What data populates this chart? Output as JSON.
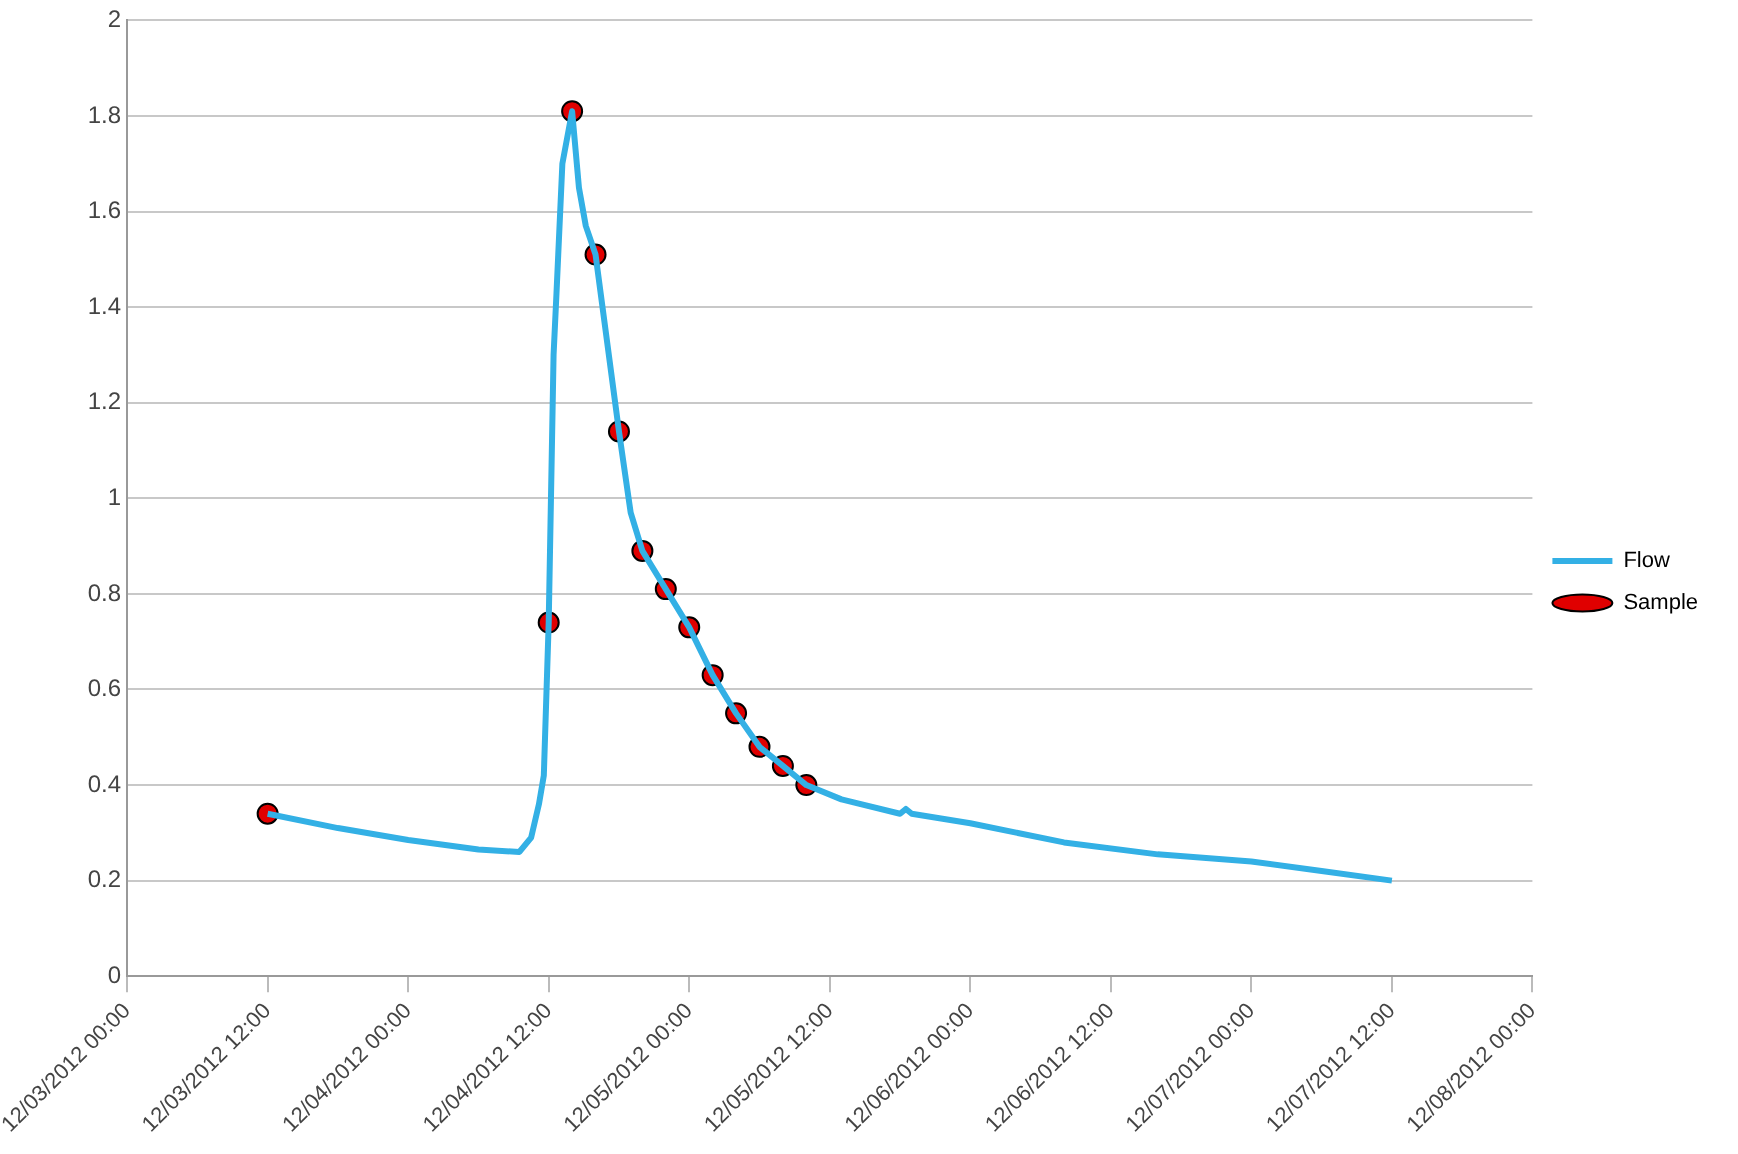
{
  "chart_data": {
    "type": "line",
    "xlim": [
      "2012-12-03T00:00",
      "2012-12-08T00:00"
    ],
    "xticks": [
      {
        "value": "2012-12-03T00:00",
        "label": "12/03/2012 00:00"
      },
      {
        "value": "2012-12-03T12:00",
        "label": "12/03/2012 12:00"
      },
      {
        "value": "2012-12-04T00:00",
        "label": "12/04/2012 00:00"
      },
      {
        "value": "2012-12-04T12:00",
        "label": "12/04/2012 12:00"
      },
      {
        "value": "2012-12-05T00:00",
        "label": "12/05/2012 00:00"
      },
      {
        "value": "2012-12-05T12:00",
        "label": "12/05/2012 12:00"
      },
      {
        "value": "2012-12-06T00:00",
        "label": "12/06/2012 00:00"
      },
      {
        "value": "2012-12-06T12:00",
        "label": "12/06/2012 12:00"
      },
      {
        "value": "2012-12-07T00:00",
        "label": "12/07/2012 00:00"
      },
      {
        "value": "2012-12-07T12:00",
        "label": "12/07/2012 12:00"
      },
      {
        "value": "2012-12-08T00:00",
        "label": "12/08/2012 00:00"
      }
    ],
    "ylim": [
      0,
      2
    ],
    "yticks": [
      0,
      0.2,
      0.4,
      0.6,
      0.8,
      1,
      1.2,
      1.4,
      1.6,
      1.8,
      2
    ],
    "grid": "y",
    "legend": "right",
    "series": [
      {
        "name": "Flow",
        "color": "#33b0e5",
        "marker": "none",
        "x": [
          "2012-12-03T12:00",
          "2012-12-03T18:00",
          "2012-12-04T00:00",
          "2012-12-04T06:00",
          "2012-12-04T09:30",
          "2012-12-04T10:30",
          "2012-12-04T11:10",
          "2012-12-04T11:35",
          "2012-12-04T12:00",
          "2012-12-04T12:25",
          "2012-12-04T12:40",
          "2012-12-04T13:10",
          "2012-12-04T14:00",
          "2012-12-04T14:35",
          "2012-12-04T15:10",
          "2012-12-04T16:00",
          "2012-12-04T18:00",
          "2012-12-04T19:00",
          "2012-12-04T20:00",
          "2012-12-04T22:00",
          "2012-12-05T00:00",
          "2012-12-05T02:00",
          "2012-12-05T04:00",
          "2012-12-05T06:00",
          "2012-12-05T08:00",
          "2012-12-05T10:00",
          "2012-12-05T13:00",
          "2012-12-05T18:00",
          "2012-12-05T18:30",
          "2012-12-05T19:00",
          "2012-12-06T00:00",
          "2012-12-06T08:00",
          "2012-12-06T16:00",
          "2012-12-07T00:00",
          "2012-12-07T06:00",
          "2012-12-07T12:00"
        ],
        "values": [
          0.34,
          0.31,
          0.285,
          0.265,
          0.26,
          0.29,
          0.36,
          0.42,
          0.74,
          1.3,
          1.43,
          1.7,
          1.81,
          1.65,
          1.57,
          1.51,
          1.14,
          0.97,
          0.89,
          0.81,
          0.73,
          0.63,
          0.55,
          0.48,
          0.44,
          0.4,
          0.37,
          0.34,
          0.35,
          0.34,
          0.32,
          0.28,
          0.255,
          0.24,
          0.22,
          0.2
        ]
      },
      {
        "name": "Sample",
        "type": "scatter",
        "color": "#e00000",
        "marker": "circle",
        "x": [
          "2012-12-03T12:00",
          "2012-12-04T12:00",
          "2012-12-04T14:00",
          "2012-12-04T16:00",
          "2012-12-04T18:00",
          "2012-12-04T20:00",
          "2012-12-04T22:00",
          "2012-12-05T00:00",
          "2012-12-05T02:00",
          "2012-12-05T04:00",
          "2012-12-05T06:00",
          "2012-12-05T08:00",
          "2012-12-05T10:00"
        ],
        "values": [
          0.34,
          0.74,
          1.81,
          1.51,
          1.14,
          0.89,
          0.81,
          0.73,
          0.63,
          0.55,
          0.48,
          0.44,
          0.4
        ]
      }
    ]
  }
}
